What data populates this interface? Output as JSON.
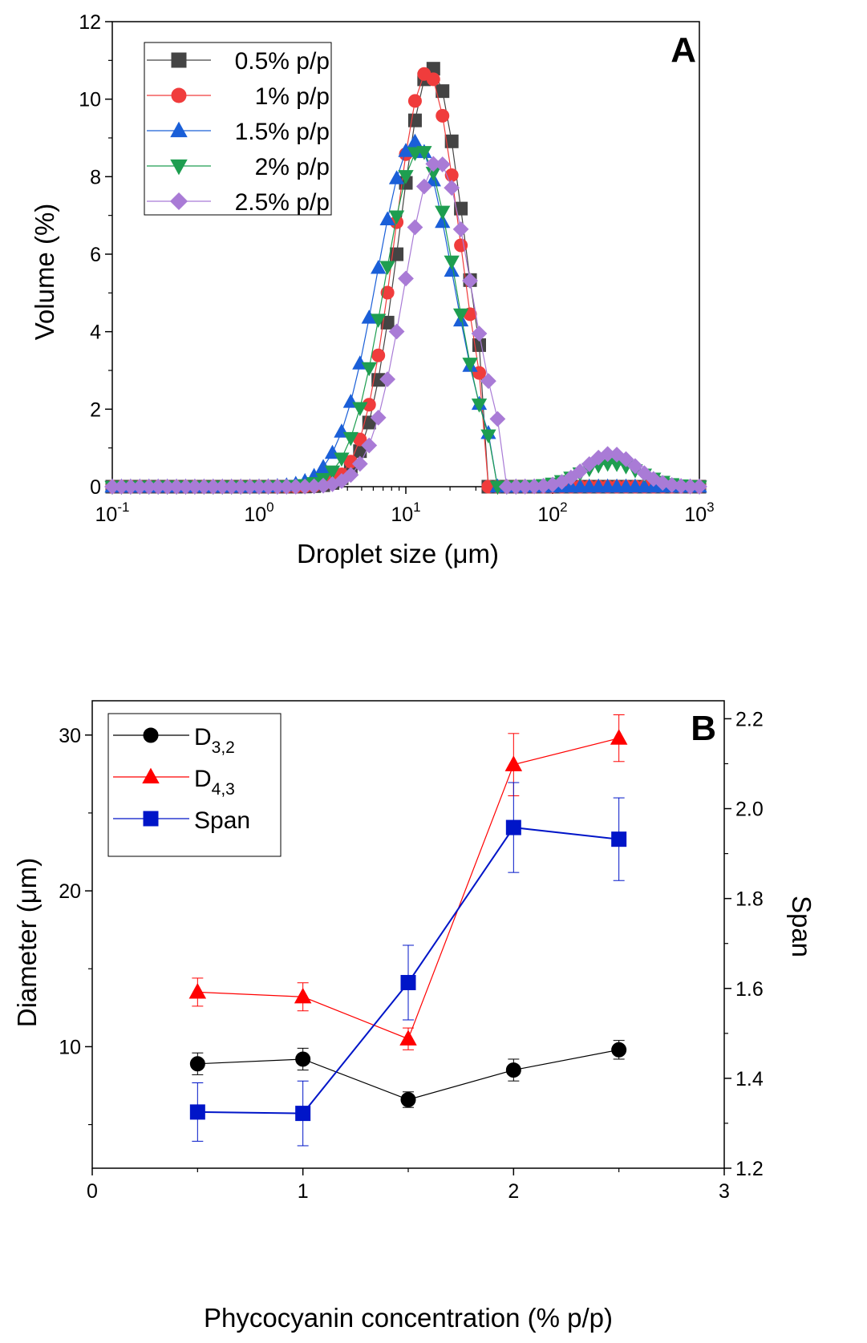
{
  "chart_data": [
    {
      "panel_label": "A",
      "type": "scatter",
      "lines": true,
      "xlabel": "Droplet size (μm)",
      "ylabel": "Volume (%)",
      "x_scale": "log",
      "xlim": [
        0.1,
        1000
      ],
      "ylim": [
        0,
        12
      ],
      "x_tick_labels": [
        {
          "base": "10",
          "exp": "-1"
        },
        {
          "base": "10",
          "exp": "0"
        },
        {
          "base": "10",
          "exp": "1"
        },
        {
          "base": "10",
          "exp": "2"
        },
        {
          "base": "10",
          "exp": "3"
        }
      ],
      "y_tick_labels": [
        "0",
        "2",
        "4",
        "6",
        "8",
        "10",
        "12"
      ],
      "legend_position": "top-left",
      "series": [
        {
          "name": "0.5% p/p",
          "color": "#444444",
          "marker": "square",
          "peaks": [
            {
              "center_um": 15,
              "sigma_log10": 0.22,
              "height": 10.8
            }
          ],
          "range_um": [
            2,
            36
          ]
        },
        {
          "name": "1% p/p",
          "color": "#f03c3c",
          "marker": "circle",
          "peaks": [
            {
              "center_um": 14,
              "sigma_log10": 0.22,
              "height": 10.7
            }
          ],
          "range_um": [
            2,
            36
          ]
        },
        {
          "name": "1.5% p/p",
          "color": "#1a5fd8",
          "marker": "triangle-up",
          "peaks": [
            {
              "center_um": 11.5,
              "sigma_log10": 0.26,
              "height": 8.9
            },
            {
              "center_um": 250,
              "sigma_log10": 0.15,
              "height": 0.0
            }
          ],
          "range_um": [
            0.75,
            40
          ]
        },
        {
          "name": "2% p/p",
          "color": "#1e9e50",
          "marker": "triangle-down",
          "peaks": [
            {
              "center_um": 12.5,
              "sigma_log10": 0.24,
              "height": 8.7
            },
            {
              "center_um": 250,
              "sigma_log10": 0.2,
              "height": 0.6
            }
          ],
          "range_um": [
            1,
            42
          ]
        },
        {
          "name": "2.5% p/p",
          "color": "#a97bd6",
          "marker": "diamond",
          "peaks": [
            {
              "center_um": 16.5,
              "sigma_log10": 0.23,
              "height": 8.4
            },
            {
              "center_um": 250,
              "sigma_log10": 0.17,
              "height": 0.85
            }
          ],
          "range_um": [
            1,
            48
          ]
        }
      ]
    },
    {
      "panel_label": "B",
      "type": "line",
      "xlabel": "Phycocyanin concentration (% p/p)",
      "ylabel": "Diameter (μm)",
      "y2label": "Span",
      "xlim": [
        0,
        3
      ],
      "ylim": [
        2.2,
        32.2
      ],
      "y2lim": [
        1.2,
        2.24
      ],
      "x_tick_labels": [
        "0",
        "1",
        "2",
        "3"
      ],
      "y_tick_labels": [
        "10",
        "20",
        "30"
      ],
      "y2_tick_labels": [
        "1.2",
        "1.4",
        "1.6",
        "1.8",
        "2.0",
        "2.2"
      ],
      "legend_position": "top-left",
      "x": [
        0.5,
        1,
        1.5,
        2,
        2.5
      ],
      "series": [
        {
          "name": "D",
          "subscript": "3,2",
          "axis": "left",
          "color": "#000000",
          "marker": "circle",
          "values": [
            8.9,
            9.2,
            6.6,
            8.5,
            9.8
          ],
          "errors": [
            0.7,
            0.7,
            0.5,
            0.7,
            0.6
          ]
        },
        {
          "name": "D",
          "subscript": "4,3",
          "axis": "left",
          "color": "#ff0000",
          "marker": "triangle-up",
          "values": [
            13.5,
            13.2,
            10.5,
            28.1,
            29.8
          ],
          "errors": [
            0.9,
            0.9,
            0.7,
            2.0,
            1.5
          ]
        },
        {
          "name": "Span",
          "subscript": "",
          "axis": "right",
          "color": "#0015c8",
          "marker": "square",
          "values": [
            1.325,
            1.322,
            1.613,
            1.958,
            1.932
          ],
          "errors": [
            0.065,
            0.072,
            0.083,
            0.1,
            0.092
          ]
        }
      ]
    }
  ]
}
